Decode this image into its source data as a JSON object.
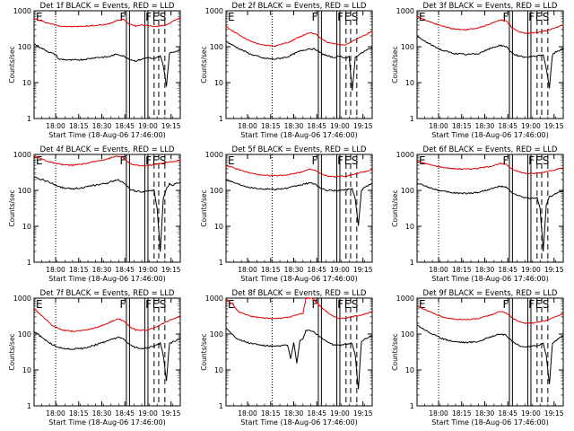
{
  "ylabel": "Counts/sec",
  "xlabel": "Start Time (18-Aug-06 17:46:00)",
  "ytick_labels": [
    "1",
    "10",
    "100",
    "1000"
  ],
  "xtick_labels": [
    "18:00",
    "18:15",
    "18:30",
    "18:45",
    "19:00",
    "19:15"
  ],
  "marker_labels": [
    "F",
    "F",
    "E",
    "S"
  ],
  "colors": {
    "events": "#000000",
    "lld": "#dd0000",
    "axes": "#000000",
    "background": "#ffffff"
  },
  "chart_data": [
    {
      "type": "line",
      "title": "Det 1f BLACK = Events, RED = LLD",
      "x_unit": "minutes since 17:46:00",
      "xlim": [
        0,
        95
      ],
      "ylog": true,
      "ylim": [
        1,
        1000
      ],
      "marker_times": [
        60,
        62,
        72,
        74
      ],
      "dashed_times": [
        78,
        81,
        85
      ],
      "dotted_times": [
        14
      ],
      "series": [
        {
          "name": "LLD",
          "color": "#dd0000",
          "x": [
            0,
            8,
            16,
            24,
            32,
            40,
            48,
            54,
            58,
            62,
            66,
            70,
            74,
            78,
            82,
            86,
            90,
            95
          ],
          "values": [
            600,
            470,
            380,
            360,
            370,
            390,
            420,
            550,
            590,
            420,
            380,
            400,
            390,
            360,
            380,
            410,
            500,
            640
          ]
        },
        {
          "name": "Events",
          "color": "#000000",
          "x": [
            0,
            5,
            10,
            14,
            16,
            24,
            32,
            40,
            48,
            54,
            58,
            62,
            66,
            70,
            74,
            78,
            82,
            84,
            86,
            88,
            90,
            95
          ],
          "values": [
            120,
            90,
            70,
            60,
            45,
            42,
            44,
            50,
            52,
            62,
            55,
            45,
            40,
            45,
            50,
            45,
            55,
            30,
            8,
            65,
            70,
            82
          ]
        }
      ]
    },
    {
      "type": "line",
      "title": "Det 2f BLACK = Events, RED = LLD",
      "x_unit": "minutes since 17:46:00",
      "xlim": [
        0,
        95
      ],
      "ylog": true,
      "ylim": [
        1,
        1000
      ],
      "marker_times": [
        60,
        62,
        72,
        74
      ],
      "dashed_times": [
        78,
        81,
        85
      ],
      "dotted_times": [
        30
      ],
      "series": [
        {
          "name": "LLD",
          "color": "#dd0000",
          "x": [
            0,
            8,
            16,
            24,
            32,
            40,
            48,
            54,
            58,
            62,
            66,
            70,
            74,
            78,
            82,
            86,
            90,
            95
          ],
          "values": [
            360,
            220,
            140,
            110,
            105,
            130,
            190,
            240,
            230,
            170,
            130,
            120,
            115,
            115,
            140,
            170,
            210,
            270
          ]
        },
        {
          "name": "Events",
          "color": "#000000",
          "x": [
            0,
            8,
            16,
            24,
            32,
            40,
            48,
            54,
            58,
            62,
            66,
            70,
            74,
            78,
            80,
            82,
            84,
            86,
            88,
            90,
            95
          ],
          "values": [
            140,
            90,
            62,
            48,
            45,
            52,
            75,
            88,
            85,
            65,
            55,
            50,
            55,
            48,
            52,
            6,
            50,
            60,
            65,
            75,
            95
          ]
        }
      ]
    },
    {
      "type": "line",
      "title": "Det 3f BLACK = Events, RED = LLD",
      "x_unit": "minutes since 17:46:00",
      "xlim": [
        0,
        95
      ],
      "ylog": true,
      "ylim": [
        1,
        1000
      ],
      "marker_times": [
        60,
        62,
        72,
        74
      ],
      "dashed_times": [
        78,
        81,
        85
      ],
      "dotted_times": [
        14
      ],
      "series": [
        {
          "name": "LLD",
          "color": "#dd0000",
          "x": [
            0,
            8,
            16,
            24,
            32,
            40,
            48,
            54,
            58,
            62,
            66,
            70,
            74,
            78,
            82,
            86,
            90,
            95
          ],
          "values": [
            700,
            500,
            380,
            310,
            300,
            330,
            440,
            560,
            520,
            330,
            260,
            240,
            240,
            250,
            270,
            300,
            340,
            400
          ]
        },
        {
          "name": "Events",
          "color": "#000000",
          "x": [
            0,
            8,
            16,
            24,
            32,
            40,
            48,
            54,
            58,
            62,
            66,
            70,
            74,
            78,
            82,
            84,
            86,
            88,
            90,
            95
          ],
          "values": [
            190,
            120,
            80,
            65,
            60,
            65,
            90,
            110,
            100,
            65,
            55,
            50,
            52,
            55,
            60,
            25,
            7,
            60,
            70,
            90
          ]
        }
      ]
    },
    {
      "type": "line",
      "title": "Det 4f BLACK = Events, RED = LLD",
      "x_unit": "minutes since 17:46:00",
      "xlim": [
        0,
        95
      ],
      "ylog": true,
      "ylim": [
        1,
        1000
      ],
      "marker_times": [
        60,
        62,
        72,
        74
      ],
      "dashed_times": [
        78,
        81,
        85
      ],
      "dotted_times": [
        14
      ],
      "series": [
        {
          "name": "LLD",
          "color": "#dd0000",
          "x": [
            0,
            5,
            10,
            14,
            18,
            24,
            32,
            40,
            48,
            54,
            58,
            62,
            66,
            70,
            74,
            78,
            82,
            86,
            90,
            95
          ],
          "values": [
            900,
            750,
            620,
            560,
            520,
            500,
            540,
            640,
            760,
            900,
            800,
            560,
            500,
            480,
            500,
            520,
            560,
            600,
            620,
            700
          ]
        },
        {
          "name": "Events",
          "color": "#000000",
          "x": [
            0,
            5,
            10,
            14,
            18,
            24,
            32,
            40,
            48,
            54,
            58,
            62,
            66,
            70,
            74,
            78,
            80,
            82,
            84,
            86,
            88,
            90,
            95
          ],
          "values": [
            230,
            200,
            170,
            140,
            120,
            110,
            120,
            140,
            160,
            200,
            170,
            110,
            95,
            90,
            95,
            100,
            30,
            2,
            60,
            110,
            150,
            140,
            170
          ]
        }
      ]
    },
    {
      "type": "line",
      "title": "Det 5f BLACK = Events, RED = LLD",
      "x_unit": "minutes since 17:46:00",
      "xlim": [
        0,
        95
      ],
      "ylog": true,
      "ylim": [
        1,
        1000
      ],
      "marker_times": [
        60,
        62,
        72,
        74
      ],
      "dashed_times": [
        78,
        81,
        85
      ],
      "dotted_times": [
        30
      ],
      "series": [
        {
          "name": "LLD",
          "color": "#dd0000",
          "x": [
            0,
            8,
            16,
            24,
            32,
            40,
            48,
            54,
            58,
            62,
            66,
            70,
            74,
            78,
            82,
            86,
            90,
            95
          ],
          "values": [
            500,
            380,
            300,
            260,
            255,
            270,
            320,
            380,
            360,
            280,
            250,
            240,
            245,
            250,
            270,
            300,
            330,
            380
          ]
        },
        {
          "name": "Events",
          "color": "#000000",
          "x": [
            0,
            8,
            16,
            24,
            32,
            40,
            48,
            54,
            58,
            62,
            66,
            70,
            74,
            78,
            82,
            84,
            86,
            88,
            90,
            95
          ],
          "values": [
            200,
            150,
            120,
            110,
            108,
            115,
            140,
            160,
            150,
            110,
            100,
            98,
            100,
            105,
            110,
            60,
            10,
            100,
            120,
            160
          ]
        }
      ]
    },
    {
      "type": "line",
      "title": "Det 6f BLACK = Events, RED = LLD",
      "x_unit": "minutes since 17:46:00",
      "xlim": [
        0,
        95
      ],
      "ylog": true,
      "ylim": [
        1,
        1000
      ],
      "marker_times": [
        60,
        62,
        72,
        74
      ],
      "dashed_times": [
        78,
        81,
        85
      ],
      "dotted_times": [
        14
      ],
      "series": [
        {
          "name": "LLD",
          "color": "#dd0000",
          "x": [
            0,
            8,
            16,
            24,
            32,
            40,
            48,
            54,
            58,
            62,
            66,
            70,
            74,
            78,
            82,
            86,
            90,
            95
          ],
          "values": [
            650,
            520,
            440,
            400,
            390,
            410,
            470,
            560,
            520,
            390,
            330,
            300,
            290,
            300,
            320,
            350,
            380,
            420
          ]
        },
        {
          "name": "Events",
          "color": "#000000",
          "x": [
            0,
            8,
            16,
            24,
            32,
            40,
            48,
            54,
            58,
            62,
            66,
            70,
            74,
            78,
            80,
            82,
            84,
            86,
            88,
            90,
            95
          ],
          "values": [
            160,
            120,
            95,
            85,
            82,
            88,
            110,
            130,
            120,
            85,
            70,
            62,
            60,
            62,
            30,
            2,
            40,
            65,
            70,
            80,
            100
          ]
        }
      ]
    },
    {
      "type": "line",
      "title": "Det 7f BLACK = Events, RED = LLD",
      "x_unit": "minutes since 17:46:00",
      "xlim": [
        0,
        95
      ],
      "ylog": true,
      "ylim": [
        1,
        1000
      ],
      "marker_times": [
        60,
        62,
        72,
        74
      ],
      "dashed_times": [
        78,
        81,
        85
      ],
      "dotted_times": [
        14
      ],
      "series": [
        {
          "name": "LLD",
          "color": "#dd0000",
          "x": [
            0,
            6,
            12,
            18,
            24,
            32,
            40,
            48,
            54,
            58,
            62,
            66,
            70,
            74,
            78,
            82,
            86,
            90,
            95
          ],
          "values": [
            500,
            300,
            170,
            130,
            120,
            125,
            150,
            200,
            260,
            240,
            160,
            130,
            125,
            130,
            150,
            180,
            220,
            260,
            320
          ]
        },
        {
          "name": "Events",
          "color": "#000000",
          "x": [
            0,
            6,
            12,
            18,
            24,
            32,
            40,
            48,
            54,
            58,
            62,
            66,
            70,
            74,
            78,
            82,
            84,
            86,
            88,
            90,
            95
          ],
          "values": [
            120,
            75,
            50,
            40,
            38,
            40,
            50,
            65,
            80,
            75,
            50,
            42,
            40,
            42,
            45,
            55,
            25,
            5,
            55,
            60,
            75
          ]
        }
      ]
    },
    {
      "type": "line",
      "title": "Det 8f BLACK = Events, RED = LLD",
      "x_unit": "minutes since 17:46:00",
      "xlim": [
        0,
        95
      ],
      "ylog": true,
      "ylim": [
        1,
        1000
      ],
      "marker_times": [
        60,
        62,
        72,
        74
      ],
      "dashed_times": [
        78,
        81,
        85
      ],
      "dotted_times": [
        30
      ],
      "series": [
        {
          "name": "LLD",
          "color": "#dd0000",
          "x": [
            0,
            4,
            8,
            16,
            24,
            32,
            40,
            44,
            48,
            50,
            52,
            56,
            62,
            66,
            70,
            74,
            78,
            82,
            86,
            90,
            95
          ],
          "values": [
            900,
            700,
            420,
            310,
            280,
            270,
            290,
            320,
            360,
            380,
            1000,
            1000,
            550,
            400,
            300,
            270,
            280,
            300,
            330,
            360,
            420
          ]
        },
        {
          "name": "Events",
          "color": "#000000",
          "x": [
            0,
            4,
            8,
            16,
            24,
            32,
            40,
            42,
            44,
            46,
            48,
            50,
            52,
            56,
            60,
            62,
            66,
            70,
            74,
            78,
            82,
            84,
            86,
            88,
            90,
            95
          ],
          "values": [
            150,
            100,
            70,
            55,
            48,
            45,
            50,
            20,
            60,
            15,
            65,
            70,
            130,
            120,
            90,
            80,
            60,
            50,
            48,
            52,
            55,
            25,
            3,
            60,
            70,
            90
          ]
        }
      ]
    },
    {
      "type": "line",
      "title": "Det 9f BLACK = Events, RED = LLD",
      "x_unit": "minutes since 17:46:00",
      "xlim": [
        0,
        95
      ],
      "ylog": true,
      "ylim": [
        1,
        1000
      ],
      "marker_times": [
        60,
        62,
        72,
        74
      ],
      "dashed_times": [
        78,
        81,
        85
      ],
      "dotted_times": [
        14
      ],
      "series": [
        {
          "name": "LLD",
          "color": "#dd0000",
          "x": [
            0,
            8,
            16,
            24,
            32,
            40,
            48,
            54,
            58,
            62,
            66,
            70,
            74,
            78,
            82,
            86,
            90,
            95
          ],
          "values": [
            600,
            420,
            300,
            260,
            250,
            270,
            340,
            420,
            390,
            280,
            220,
            200,
            200,
            210,
            230,
            260,
            300,
            380
          ]
        },
        {
          "name": "Events",
          "color": "#000000",
          "x": [
            0,
            8,
            16,
            24,
            32,
            40,
            48,
            54,
            58,
            62,
            66,
            70,
            74,
            78,
            82,
            84,
            86,
            88,
            90,
            95
          ],
          "values": [
            180,
            110,
            75,
            62,
            58,
            62,
            85,
            100,
            92,
            60,
            48,
            44,
            45,
            48,
            55,
            25,
            4,
            55,
            65,
            90
          ]
        }
      ]
    }
  ]
}
